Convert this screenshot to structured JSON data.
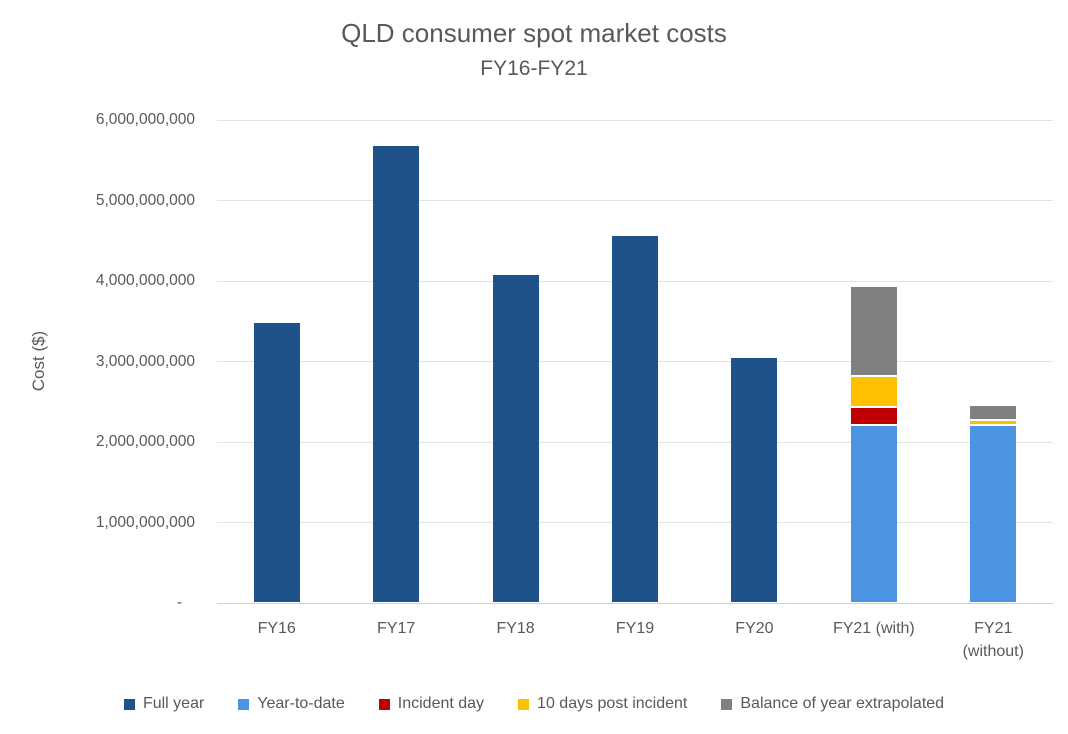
{
  "chart_data": {
    "type": "bar",
    "stacked": true,
    "title": "QLD consumer spot market costs",
    "subtitle": "FY16-FY21",
    "ylabel": "Cost ($)",
    "ylim": [
      0,
      6000000000
    ],
    "ytick_interval": 1000000000,
    "ytick_labels": [
      "-",
      "1,000,000,000",
      "2,000,000,000",
      "3,000,000,000",
      "4,000,000,000",
      "5,000,000,000",
      "6,000,000,000"
    ],
    "grid": true,
    "legend_position": "bottom",
    "categories": [
      "FY16",
      "FY17",
      "FY18",
      "FY19",
      "FY20",
      "FY21 (with)",
      "FY21\n(without)"
    ],
    "series": [
      {
        "name": "Full year",
        "color": "#1f5288",
        "values": [
          3470000000,
          5670000000,
          4060000000,
          4550000000,
          3030000000,
          null,
          null
        ]
      },
      {
        "name": "Year-to-date",
        "color": "#4a94e2",
        "values": [
          null,
          null,
          null,
          null,
          null,
          2190000000,
          2190000000
        ]
      },
      {
        "name": "Incident day",
        "color": "#c00000",
        "values": [
          null,
          null,
          null,
          null,
          null,
          220000000,
          null
        ]
      },
      {
        "name": "10 days post incident",
        "color": "#ffc000",
        "values": [
          null,
          null,
          null,
          null,
          null,
          390000000,
          60000000
        ]
      },
      {
        "name": "Balance of year extrapolated",
        "color": "#808080",
        "values": [
          null,
          null,
          null,
          null,
          null,
          1110000000,
          190000000
        ]
      }
    ]
  }
}
